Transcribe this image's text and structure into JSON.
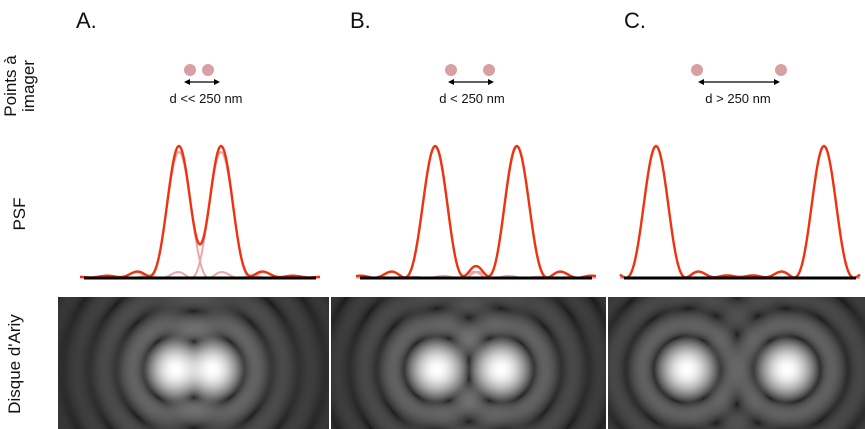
{
  "row_labels": {
    "points": "Points à\nimager",
    "psf": "PSF",
    "airy": "Disque d'Ariy"
  },
  "panels": [
    {
      "label": "A.",
      "distance_label": "d << 250 nm",
      "case": "much-less"
    },
    {
      "label": "B.",
      "distance_label": "d < 250 nm",
      "case": "less"
    },
    {
      "label": "C.",
      "distance_label": "d > 250 nm",
      "case": "greater"
    }
  ],
  "colors": {
    "dot": "#d9a0a3",
    "sum_curve": "#ee3311",
    "single_psf": "#e8a8a8",
    "baseline": "#000000"
  }
}
